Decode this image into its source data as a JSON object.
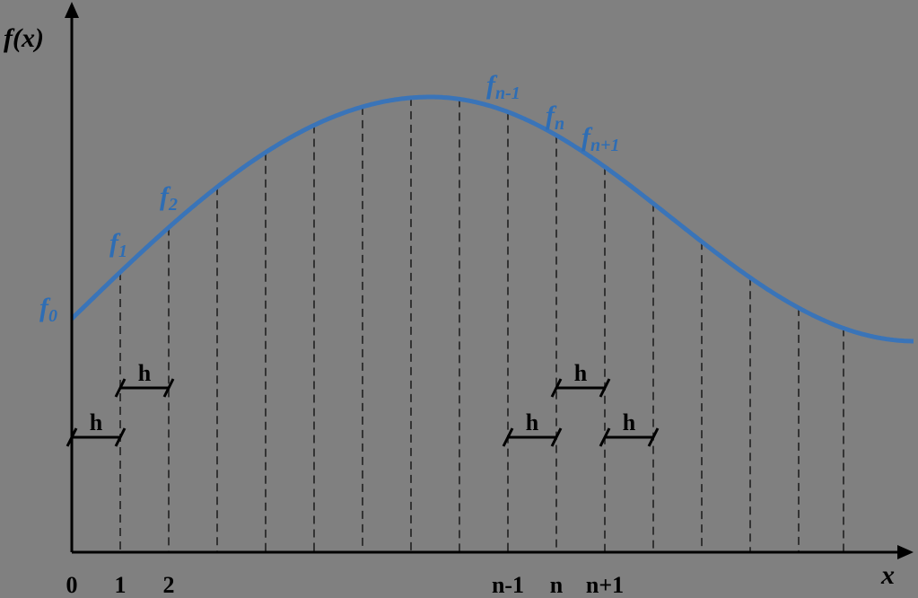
{
  "axes": {
    "y_label": "f(x)",
    "x_label": "x"
  },
  "x_labels": [
    "0",
    "1",
    "2",
    "n-1",
    "n",
    "n+1"
  ],
  "curve_labels": [
    {
      "base": "f",
      "sub": "0"
    },
    {
      "base": "f",
      "sub": "1"
    },
    {
      "base": "f",
      "sub": "2"
    },
    {
      "base": "f",
      "sub": "n-1"
    },
    {
      "base": "f",
      "sub": "n"
    },
    {
      "base": "f",
      "sub": "n+1"
    }
  ],
  "steps": [
    "h",
    "h",
    "h",
    "h",
    "h"
  ]
}
